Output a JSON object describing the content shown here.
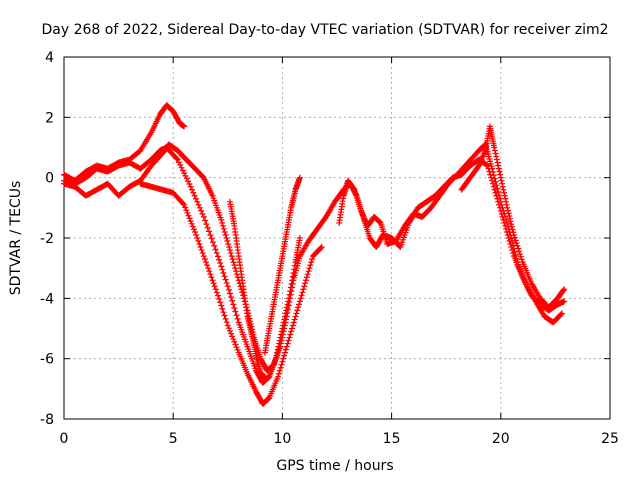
{
  "chart_data": {
    "type": "scatter",
    "title": "Day 268 of 2022, Sidereal Day-to-day VTEC variation (SDTVAR) for receiver zim2",
    "xlabel": "GPS time / hours",
    "ylabel": "SDTVAR / TECUs",
    "xlim": [
      0,
      25
    ],
    "ylim": [
      -8,
      4
    ],
    "xticks": [
      "0",
      "5",
      "10",
      "15",
      "20",
      "25"
    ],
    "yticks": [
      "4",
      "2",
      "0",
      "-2",
      "-4",
      "-6",
      "-8"
    ],
    "grid": true,
    "marker": "+",
    "color": "#ff0000",
    "series": [
      {
        "points": [
          [
            0,
            -0.2
          ],
          [
            0.5,
            -0.3
          ],
          [
            1,
            -0.6
          ],
          [
            1.5,
            -0.4
          ],
          [
            2,
            -0.2
          ],
          [
            2.5,
            -0.6
          ],
          [
            3,
            -0.3
          ],
          [
            3.5,
            -0.1
          ],
          [
            4,
            0.4
          ],
          [
            4.5,
            0.8
          ],
          [
            4.8,
            1.1
          ],
          [
            5.2,
            0.9
          ],
          [
            5.6,
            0.6
          ],
          [
            6,
            0.3
          ],
          [
            6.4,
            0
          ],
          [
            6.8,
            -0.6
          ],
          [
            7.2,
            -1.4
          ],
          [
            7.6,
            -2.4
          ],
          [
            8,
            -3.4
          ],
          [
            8.4,
            -4.4
          ],
          [
            8.7,
            -5.3
          ],
          [
            9,
            -6
          ],
          [
            9.3,
            -6.4
          ],
          [
            9.6,
            -6.2
          ],
          [
            9.9,
            -5.6
          ],
          [
            10.2,
            -4.6
          ],
          [
            10.5,
            -3.4
          ],
          [
            10.8,
            -2.6
          ],
          [
            11.2,
            -2.1
          ],
          [
            11.6,
            -1.7
          ],
          [
            12,
            -1.3
          ],
          [
            12.4,
            -0.8
          ],
          [
            12.8,
            -0.4
          ],
          [
            13.1,
            -0.2
          ],
          [
            13.4,
            -0.6
          ],
          [
            13.7,
            -1.3
          ],
          [
            14,
            -2
          ],
          [
            14.3,
            -2.3
          ],
          [
            14.6,
            -1.9
          ],
          [
            15,
            -2
          ],
          [
            15.4,
            -2.3
          ],
          [
            15.8,
            -1.5
          ],
          [
            16.2,
            -1
          ],
          [
            16.6,
            -0.8
          ],
          [
            17,
            -0.6
          ],
          [
            17.4,
            -0.3
          ],
          [
            17.8,
            0
          ],
          [
            18.2,
            0.1
          ],
          [
            18.6,
            0.4
          ],
          [
            19,
            0.6
          ],
          [
            19.4,
            0.4
          ],
          [
            19.8,
            -0.6
          ],
          [
            20.2,
            -1.6
          ],
          [
            20.6,
            -2.6
          ],
          [
            21,
            -3.3
          ],
          [
            21.4,
            -3.9
          ],
          [
            21.8,
            -4.2
          ],
          [
            22.2,
            -4.4
          ],
          [
            22.6,
            -4.2
          ],
          [
            22.9,
            -4.1
          ]
        ]
      },
      {
        "points": [
          [
            0,
            0.1
          ],
          [
            0.5,
            -0.1
          ],
          [
            1,
            0.2
          ],
          [
            1.5,
            0.4
          ],
          [
            2,
            0.3
          ],
          [
            2.5,
            0.5
          ],
          [
            3,
            0.6
          ],
          [
            3.5,
            0.9
          ],
          [
            4,
            1.5
          ],
          [
            4.4,
            2.1
          ],
          [
            4.7,
            2.4
          ],
          [
            5,
            2.2
          ],
          [
            5.3,
            1.8
          ],
          [
            5.5,
            1.7
          ]
        ]
      },
      {
        "points": [
          [
            0,
            -0.1
          ],
          [
            0.5,
            -0.2
          ],
          [
            1,
            0
          ],
          [
            1.5,
            0.3
          ],
          [
            2,
            0.2
          ],
          [
            2.5,
            0.4
          ],
          [
            3,
            0.5
          ],
          [
            3.5,
            0.3
          ],
          [
            4,
            0.6
          ],
          [
            4.4,
            0.9
          ],
          [
            4.7,
            1.0
          ],
          [
            5.2,
            0.6
          ],
          [
            5.8,
            -0.3
          ],
          [
            6.4,
            -1.3
          ],
          [
            7,
            -2.5
          ],
          [
            7.5,
            -3.6
          ],
          [
            8,
            -4.8
          ],
          [
            8.4,
            -5.6
          ],
          [
            8.8,
            -6.4
          ],
          [
            9.1,
            -6.8
          ],
          [
            9.4,
            -6.6
          ],
          [
            9.7,
            -6.0
          ],
          [
            10,
            -5.0
          ],
          [
            10.3,
            -4.0
          ],
          [
            10.6,
            -2.8
          ],
          [
            10.8,
            -2.0
          ]
        ]
      },
      {
        "points": [
          [
            3.5,
            -0.2
          ],
          [
            4,
            -0.3
          ],
          [
            4.5,
            -0.4
          ],
          [
            5,
            -0.5
          ],
          [
            5.5,
            -0.9
          ],
          [
            6,
            -1.8
          ],
          [
            6.5,
            -2.8
          ],
          [
            7,
            -3.8
          ],
          [
            7.5,
            -4.9
          ],
          [
            8,
            -5.8
          ],
          [
            8.4,
            -6.5
          ],
          [
            8.8,
            -7.1
          ],
          [
            9.1,
            -7.5
          ],
          [
            9.4,
            -7.3
          ],
          [
            9.8,
            -6.6
          ],
          [
            10.2,
            -5.6
          ],
          [
            10.6,
            -4.6
          ],
          [
            11,
            -3.6
          ],
          [
            11.4,
            -2.6
          ],
          [
            11.8,
            -2.3
          ]
        ]
      },
      {
        "points": [
          [
            7.6,
            -0.8
          ],
          [
            7.8,
            -1.6
          ],
          [
            8,
            -2.6
          ],
          [
            8.2,
            -3.6
          ],
          [
            8.4,
            -4.6
          ],
          [
            8.6,
            -5.2
          ],
          [
            8.8,
            -5.9
          ],
          [
            9,
            -6.5
          ],
          [
            9.2,
            -6.6
          ]
        ]
      },
      {
        "points": [
          [
            10.8,
            0
          ],
          [
            10.6,
            -0.4
          ],
          [
            10.4,
            -1.0
          ],
          [
            10.2,
            -1.8
          ],
          [
            10.0,
            -2.6
          ],
          [
            9.8,
            -3.4
          ],
          [
            9.6,
            -4.2
          ],
          [
            9.4,
            -5.0
          ],
          [
            9.2,
            -5.8
          ]
        ]
      },
      {
        "points": [
          [
            12.6,
            -1.5
          ],
          [
            12.8,
            -0.6
          ],
          [
            13,
            -0.1
          ],
          [
            13.3,
            -0.4
          ],
          [
            13.6,
            -1.1
          ],
          [
            13.9,
            -1.6
          ],
          [
            14.2,
            -1.3
          ],
          [
            14.5,
            -1.5
          ],
          [
            14.8,
            -2.2
          ],
          [
            15.2,
            -2.1
          ],
          [
            15.6,
            -1.6
          ],
          [
            16,
            -1.2
          ],
          [
            16.4,
            -1.3
          ],
          [
            16.8,
            -1.0
          ],
          [
            17.2,
            -0.6
          ],
          [
            17.6,
            -0.2
          ],
          [
            18,
            0.1
          ],
          [
            18.5,
            0.5
          ],
          [
            19,
            0.9
          ],
          [
            19.3,
            1.1
          ],
          [
            19.6,
            0.3
          ],
          [
            20,
            -0.8
          ],
          [
            20.4,
            -1.8
          ],
          [
            20.8,
            -2.9
          ],
          [
            21.2,
            -3.6
          ],
          [
            21.6,
            -4.1
          ],
          [
            22,
            -4.6
          ],
          [
            22.4,
            -4.8
          ],
          [
            22.8,
            -4.5
          ]
        ]
      },
      {
        "points": [
          [
            18.2,
            -0.4
          ],
          [
            18.6,
            0
          ],
          [
            19,
            0.4
          ],
          [
            19.3,
            0.9
          ],
          [
            19.5,
            1.7
          ],
          [
            19.7,
            1.0
          ],
          [
            20,
            0
          ],
          [
            20.3,
            -1.0
          ],
          [
            20.6,
            -1.9
          ],
          [
            21,
            -2.8
          ],
          [
            21.4,
            -3.5
          ],
          [
            21.8,
            -4.0
          ],
          [
            22.2,
            -4.3
          ],
          [
            22.6,
            -4.0
          ],
          [
            22.9,
            -3.7
          ]
        ]
      }
    ]
  }
}
